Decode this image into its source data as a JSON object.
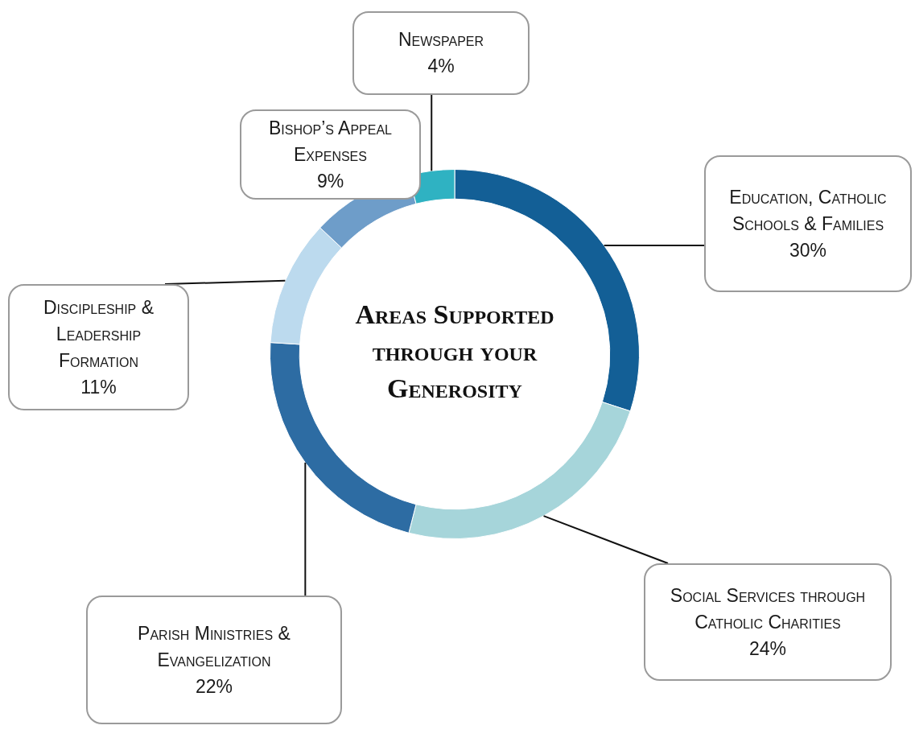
{
  "chart_data": {
    "type": "donut",
    "title": "Areas Supported through your Generosity",
    "categories": [
      "Education, Catholic Schools & Families",
      "Social Services through Catholic Charities",
      "Parish Ministries & Evangelization",
      "Discipleship & Leadership Formation",
      "Bishop’s Appeal Expenses",
      "Newspaper"
    ],
    "values": [
      30,
      24,
      22,
      11,
      9,
      4
    ],
    "colors": [
      "#135f96",
      "#a6d5da",
      "#2d6ca3",
      "#bcdaee",
      "#6e9dc9",
      "#2fb2c2"
    ],
    "value_labels": [
      "30%",
      "24%",
      "22%",
      "11%",
      "9%",
      "4%"
    ],
    "legend": false
  }
}
